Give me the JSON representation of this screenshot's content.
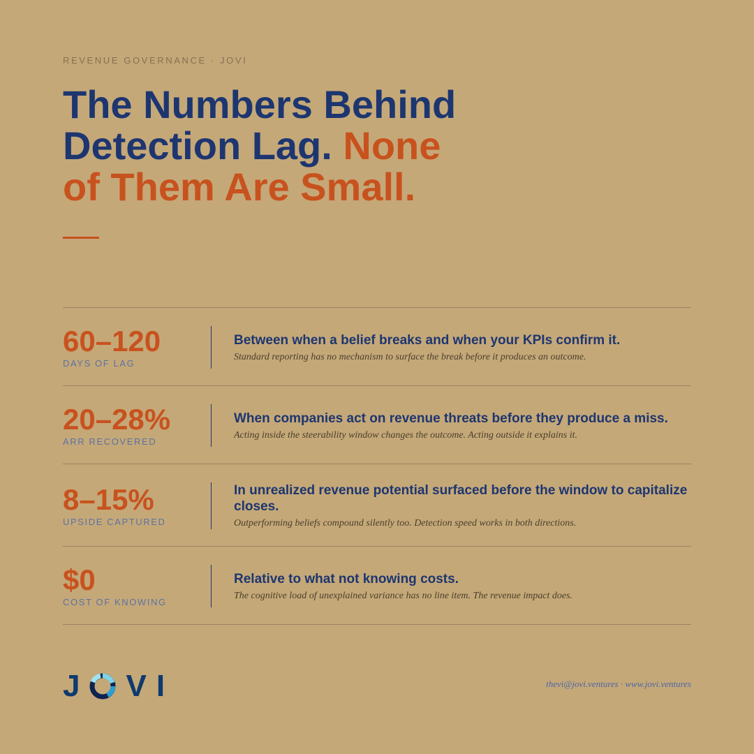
{
  "header": {
    "eyebrow": "REVENUE GOVERNANCE · JOVI",
    "title_lead": "The Numbers Behind Detection Lag.",
    "title_accent": "None of Them Are Small."
  },
  "stats": [
    {
      "figure": "60–120",
      "label": "DAYS OF LAG",
      "heading": "Between when a belief breaks and when your KPIs confirm it.",
      "note": "Standard reporting has no mechanism to surface the break before it produces an outcome."
    },
    {
      "figure": "20–28%",
      "label": "ARR RECOVERED",
      "heading": "When companies act on revenue threats before they produce a miss.",
      "note": "Acting inside the steerability window changes the outcome. Acting outside it explains it."
    },
    {
      "figure": "8–15%",
      "label": "UPSIDE CAPTURED",
      "heading": "In unrealized revenue potential surfaced before the window to capitalize closes.",
      "note": "Outperforming beliefs compound silently too. Detection speed works in both directions."
    },
    {
      "figure": "$0",
      "label": "COST OF KNOWING",
      "heading": "Relative to what not knowing costs.",
      "note": "The cognitive load of unexplained variance has no line item. The revenue impact does."
    }
  ],
  "footer": {
    "logo_letters": [
      "J",
      "V",
      "I"
    ],
    "contact": "thevi@jovi.ventures · www.jovi.ventures"
  }
}
